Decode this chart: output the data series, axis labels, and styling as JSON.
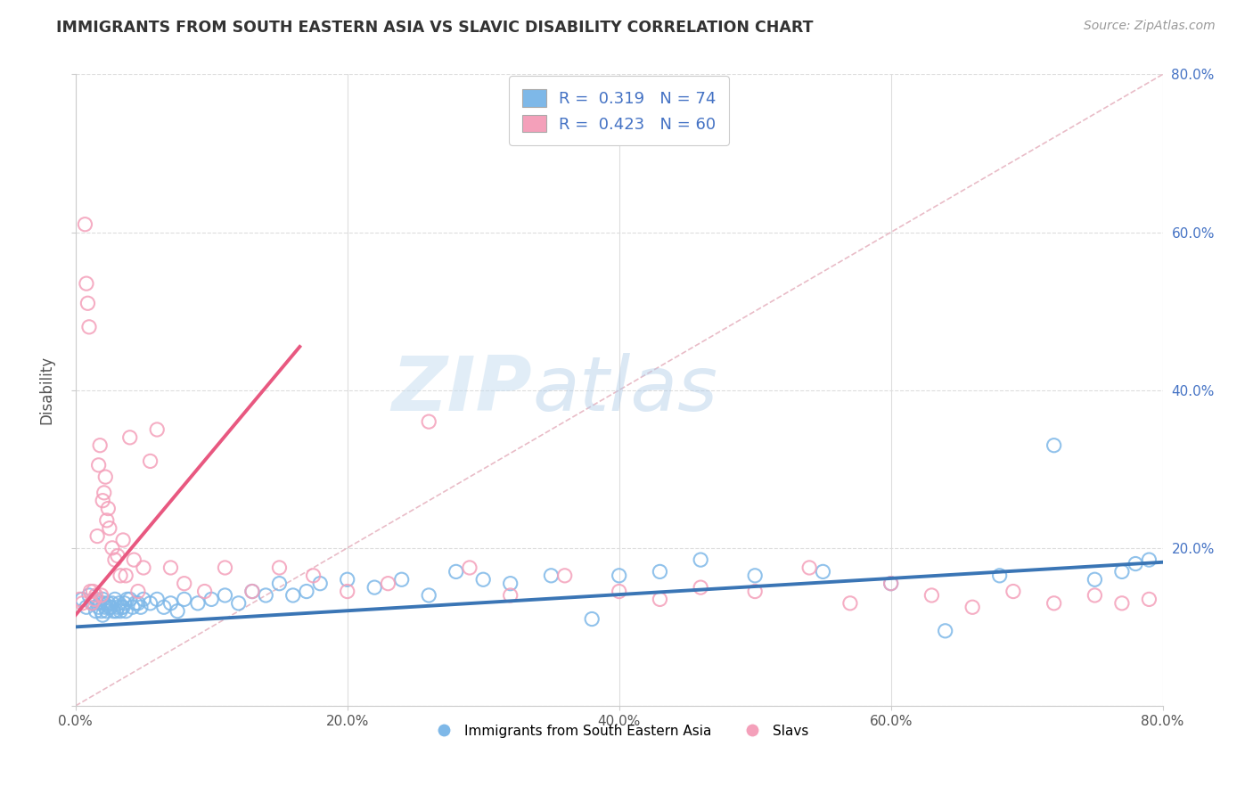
{
  "title": "IMMIGRANTS FROM SOUTH EASTERN ASIA VS SLAVIC DISABILITY CORRELATION CHART",
  "source": "Source: ZipAtlas.com",
  "ylabel": "Disability",
  "legend_line1": "R =  0.319   N = 74",
  "legend_line2": "R =  0.423   N = 60",
  "legend_label1": "Immigrants from South Eastern Asia",
  "legend_label2": "Slavs",
  "xlim": [
    0.0,
    0.8
  ],
  "ylim": [
    0.0,
    0.8
  ],
  "xticks": [
    0.0,
    0.2,
    0.4,
    0.6,
    0.8
  ],
  "yticks": [
    0.0,
    0.2,
    0.4,
    0.6,
    0.8
  ],
  "xticklabels": [
    "0.0%",
    "20.0%",
    "40.0%",
    "60.0%",
    "80.0%"
  ],
  "right_yticklabels": [
    "",
    "20.0%",
    "40.0%",
    "60.0%",
    "80.0%"
  ],
  "blue_color": "#7EB8E8",
  "pink_color": "#F4A0BA",
  "blue_line_color": "#3A75B5",
  "pink_line_color": "#E85880",
  "watermark_zip": "ZIP",
  "watermark_atlas": "atlas",
  "blue_scatter_x": [
    0.005,
    0.008,
    0.01,
    0.012,
    0.013,
    0.015,
    0.015,
    0.017,
    0.018,
    0.019,
    0.02,
    0.02,
    0.021,
    0.022,
    0.023,
    0.024,
    0.025,
    0.026,
    0.027,
    0.028,
    0.029,
    0.03,
    0.031,
    0.032,
    0.033,
    0.034,
    0.035,
    0.036,
    0.037,
    0.038,
    0.04,
    0.042,
    0.044,
    0.046,
    0.048,
    0.05,
    0.055,
    0.06,
    0.065,
    0.07,
    0.075,
    0.08,
    0.09,
    0.1,
    0.11,
    0.12,
    0.13,
    0.14,
    0.15,
    0.16,
    0.17,
    0.18,
    0.2,
    0.22,
    0.24,
    0.26,
    0.28,
    0.3,
    0.32,
    0.35,
    0.38,
    0.4,
    0.43,
    0.46,
    0.5,
    0.55,
    0.6,
    0.64,
    0.68,
    0.72,
    0.75,
    0.77,
    0.78,
    0.79
  ],
  "blue_scatter_y": [
    0.135,
    0.125,
    0.14,
    0.13,
    0.13,
    0.12,
    0.135,
    0.125,
    0.13,
    0.12,
    0.135,
    0.115,
    0.13,
    0.125,
    0.12,
    0.13,
    0.125,
    0.125,
    0.13,
    0.12,
    0.135,
    0.12,
    0.125,
    0.13,
    0.12,
    0.125,
    0.125,
    0.13,
    0.12,
    0.135,
    0.135,
    0.125,
    0.13,
    0.13,
    0.125,
    0.135,
    0.13,
    0.135,
    0.125,
    0.13,
    0.12,
    0.135,
    0.13,
    0.135,
    0.14,
    0.13,
    0.145,
    0.14,
    0.155,
    0.14,
    0.145,
    0.155,
    0.16,
    0.15,
    0.16,
    0.14,
    0.17,
    0.16,
    0.155,
    0.165,
    0.11,
    0.165,
    0.17,
    0.185,
    0.165,
    0.17,
    0.155,
    0.095,
    0.165,
    0.33,
    0.16,
    0.17,
    0.18,
    0.185
  ],
  "pink_scatter_x": [
    0.003,
    0.005,
    0.007,
    0.008,
    0.009,
    0.01,
    0.011,
    0.012,
    0.013,
    0.014,
    0.015,
    0.016,
    0.017,
    0.018,
    0.019,
    0.02,
    0.021,
    0.022,
    0.023,
    0.024,
    0.025,
    0.027,
    0.029,
    0.031,
    0.033,
    0.035,
    0.037,
    0.04,
    0.043,
    0.046,
    0.05,
    0.055,
    0.06,
    0.07,
    0.08,
    0.095,
    0.11,
    0.13,
    0.15,
    0.175,
    0.2,
    0.23,
    0.26,
    0.29,
    0.32,
    0.36,
    0.4,
    0.43,
    0.46,
    0.5,
    0.54,
    0.57,
    0.6,
    0.63,
    0.66,
    0.69,
    0.72,
    0.75,
    0.77,
    0.79
  ],
  "pink_scatter_y": [
    0.135,
    0.13,
    0.61,
    0.535,
    0.51,
    0.48,
    0.145,
    0.13,
    0.145,
    0.135,
    0.14,
    0.215,
    0.305,
    0.33,
    0.14,
    0.26,
    0.27,
    0.29,
    0.235,
    0.25,
    0.225,
    0.2,
    0.185,
    0.19,
    0.165,
    0.21,
    0.165,
    0.34,
    0.185,
    0.145,
    0.175,
    0.31,
    0.35,
    0.175,
    0.155,
    0.145,
    0.175,
    0.145,
    0.175,
    0.165,
    0.145,
    0.155,
    0.36,
    0.175,
    0.14,
    0.165,
    0.145,
    0.135,
    0.15,
    0.145,
    0.175,
    0.13,
    0.155,
    0.14,
    0.125,
    0.145,
    0.13,
    0.14,
    0.13,
    0.135
  ],
  "blue_trend_x": [
    0.0,
    0.8
  ],
  "blue_trend_y": [
    0.1,
    0.182
  ],
  "pink_trend_x": [
    0.0,
    0.165
  ],
  "pink_trend_y": [
    0.115,
    0.455
  ],
  "ref_line_x": [
    0.0,
    0.8
  ],
  "ref_line_y": [
    0.0,
    0.8
  ]
}
